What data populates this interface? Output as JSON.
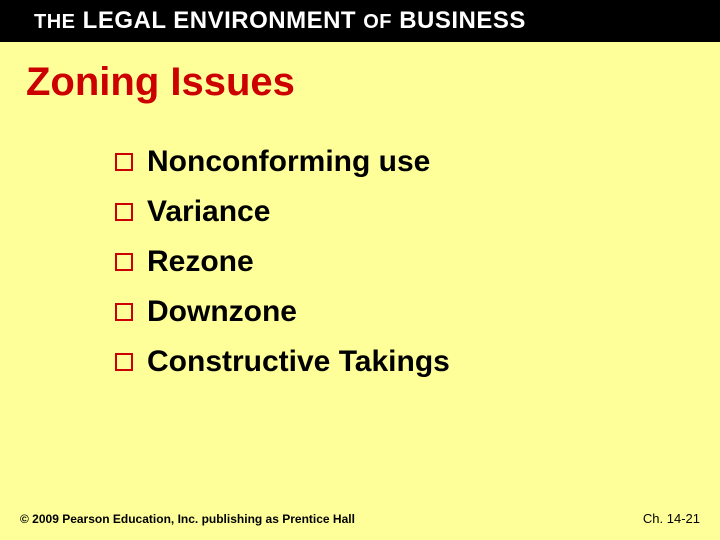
{
  "header": {
    "the": "THE",
    "middle": " LEGAL ENVIRONMENT ",
    "of": "OF",
    "end": " BUSINESS"
  },
  "title": "Zoning Issues",
  "bullets": [
    "Nonconforming use",
    "Variance",
    "Rezone",
    "Downzone",
    "Constructive Takings"
  ],
  "footer": {
    "copyright": "© 2009 Pearson Education, Inc. publishing as Prentice Hall",
    "page": "Ch. 14-21"
  },
  "colors": {
    "background": "#ffff99",
    "header_bg": "#000000",
    "header_text": "#ffffff",
    "title_color": "#cc0000",
    "bullet_border": "#cc0000",
    "body_text": "#000000"
  }
}
